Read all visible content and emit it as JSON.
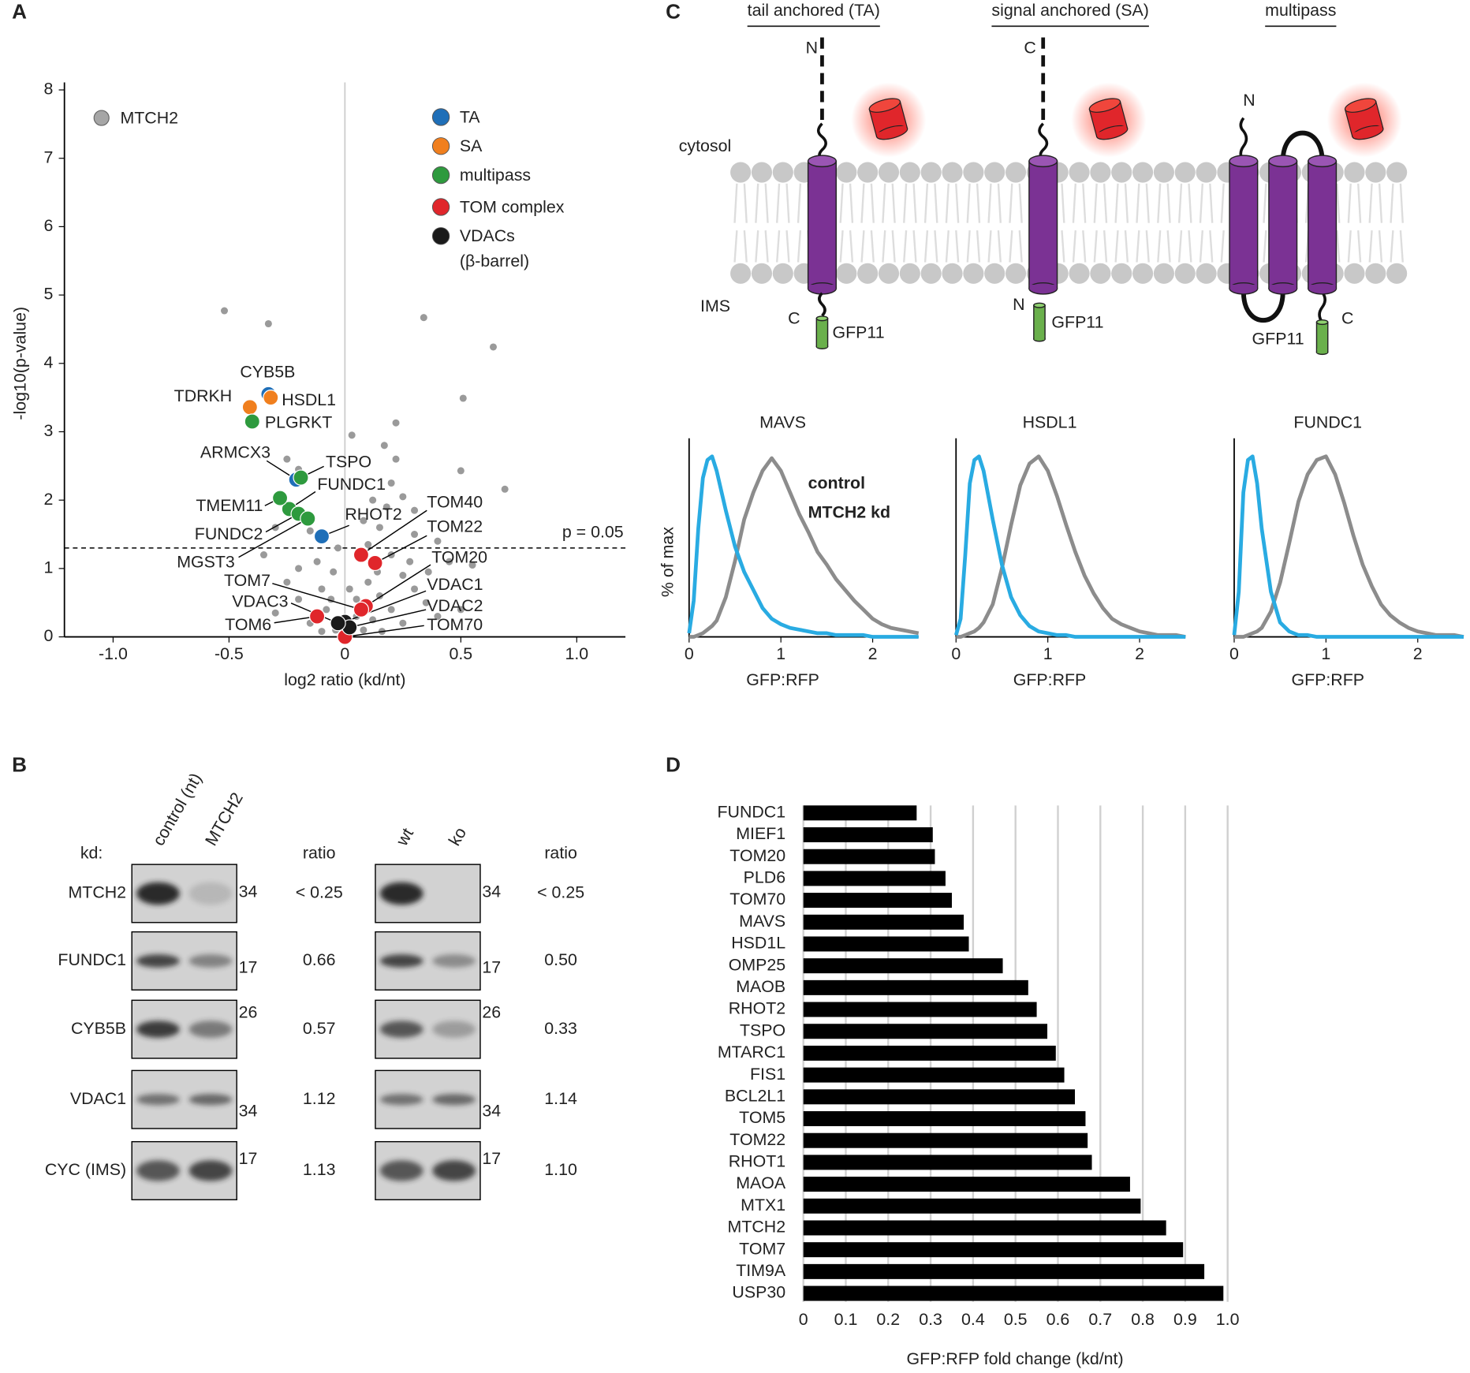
{
  "panel_labels": [
    "A",
    "B",
    "C",
    "D"
  ],
  "chart_data": [
    {
      "type": "scatter",
      "xlabel": "log2 ratio (kd/nt)",
      "ylabel": "-log10(p-value)",
      "xlim": [
        -1.21,
        1.21
      ],
      "ylim": [
        0,
        8
      ],
      "xticks": [
        {
          "value": -1,
          "label": "-1.0"
        },
        -0.5,
        0,
        0.5,
        {
          "value": 1,
          "label": "1.0"
        }
      ],
      "yticks": [
        0,
        1,
        2,
        3,
        4,
        5,
        6,
        7,
        8
      ],
      "vline": 0,
      "threshold": {
        "value": 1.3,
        "label": "p = 0.05"
      },
      "highlight": {
        "label": "MTCH2",
        "color": "#a6a6a6",
        "x": -1.05,
        "y": 7.59
      },
      "background": {
        "color": "#9a9a9a",
        "x": [
          -0.52,
          -0.33,
          0.34,
          0.64,
          0.51,
          0.22,
          0.5,
          0.69,
          -0.25,
          -0.2,
          0.22,
          0.2,
          0.25,
          0.3,
          0.18,
          0.15,
          -0.15,
          -0.3,
          0.3,
          0.4,
          0.45,
          0.55,
          0.2,
          0.25,
          -0.05,
          -0.12,
          -0.2,
          -0.35,
          0.1,
          0.15,
          -0.1,
          0.3,
          0.35,
          -0.2,
          0.05,
          0.2,
          -0.08,
          0.12,
          -0.15,
          0.25,
          0.05,
          -0.04,
          0.08,
          0.16,
          -0.1,
          0.4,
          0.5,
          -0.3,
          0.03,
          0.1,
          -0.03,
          0.08,
          0.12,
          0.17,
          0.14,
          0.02,
          -0.06,
          0.28,
          0.36,
          -0.25
        ],
        "y": [
          4.77,
          4.58,
          4.67,
          4.24,
          3.49,
          3.13,
          2.43,
          2.16,
          2.6,
          2.45,
          2.6,
          2.25,
          2.05,
          1.85,
          1.9,
          1.6,
          1.55,
          1.6,
          1.5,
          1.4,
          1.1,
          1.05,
          1.2,
          0.9,
          0.95,
          1.1,
          1.0,
          1.2,
          0.8,
          0.6,
          0.7,
          0.7,
          0.5,
          0.55,
          0.55,
          0.4,
          0.4,
          0.25,
          0.2,
          0.2,
          0.3,
          0.1,
          0.1,
          0.08,
          0.08,
          0.3,
          0.4,
          0.35,
          2.95,
          1.35,
          1.3,
          1.7,
          2.0,
          2.8,
          0.95,
          0.7,
          0.55,
          1.1,
          0.95,
          0.8
        ]
      },
      "series": [
        {
          "name": "TA",
          "color": "#1f6fb8",
          "points": [
            {
              "label": "CYB5B",
              "x": -0.33,
              "y": 3.55
            },
            {
              "label": "ARMCX3",
              "x": -0.21,
              "y": 2.3
            },
            {
              "label": "RHOT2",
              "x": -0.1,
              "y": 1.47
            }
          ]
        },
        {
          "name": "SA",
          "color": "#f07f1e",
          "points": [
            {
              "label": "TDRKH",
              "x": -0.41,
              "y": 3.36
            },
            {
              "label": "HSDL1",
              "x": -0.32,
              "y": 3.5
            }
          ]
        },
        {
          "name": "multipass",
          "color": "#2e9a3e",
          "points": [
            {
              "label": "PLGRKT",
              "x": -0.4,
              "y": 3.15
            },
            {
              "label": "TSPO",
              "x": -0.19,
              "y": 2.33
            },
            {
              "label": "FUNDC1",
              "x": -0.24,
              "y": 1.87
            },
            {
              "label": "TMEM11",
              "x": -0.28,
              "y": 2.03
            },
            {
              "label": "FUNDC2",
              "x": -0.2,
              "y": 1.8
            },
            {
              "label": "MGST3",
              "x": -0.16,
              "y": 1.73
            }
          ]
        },
        {
          "name": "TOM complex",
          "color": "#e0262b",
          "points": [
            {
              "label": "TOM40",
              "x": 0.07,
              "y": 1.2
            },
            {
              "label": "TOM22",
              "x": 0.13,
              "y": 1.08
            },
            {
              "label": "TOM20",
              "x": 0.09,
              "y": 0.45
            },
            {
              "label": "TOM7",
              "x": 0.07,
              "y": 0.4
            },
            {
              "label": "TOM6",
              "x": -0.12,
              "y": 0.3
            },
            {
              "label": "TOM70",
              "x": 0,
              "y": 0
            }
          ]
        },
        {
          "name": "VDACs",
          "subname": "(β-barrel)",
          "color": "#1a1a1a",
          "points": [
            {
              "label": "VDAC1",
              "x": 0,
              "y": 0.22
            },
            {
              "label": "VDAC2",
              "x": 0.02,
              "y": 0.14
            },
            {
              "label": "VDAC3",
              "x": -0.03,
              "y": 0.2
            }
          ]
        }
      ]
    },
    {
      "type": "line",
      "title": "MAVS",
      "xlabel": "GFP:RFP",
      "ylabel": "% of max",
      "xlim": [
        0,
        2.5
      ],
      "ylim": [
        0,
        110
      ],
      "xticks": [
        0,
        1,
        2
      ],
      "x": [
        0,
        0.05,
        0.1,
        0.15,
        0.2,
        0.25,
        0.3,
        0.4,
        0.5,
        0.6,
        0.7,
        0.8,
        0.9,
        1.0,
        1.1,
        1.2,
        1.3,
        1.4,
        1.5,
        1.6,
        1.7,
        1.8,
        1.9,
        2.0,
        2.1,
        2.2,
        2.3,
        2.4,
        2.5
      ],
      "series": [
        {
          "name": "control",
          "color": "#8c8c8c",
          "values": [
            0,
            0,
            1,
            2,
            4,
            6,
            9,
            22,
            42,
            65,
            80,
            92,
            99,
            92,
            80,
            68,
            58,
            47,
            40,
            32,
            26,
            20,
            15,
            10,
            7,
            5,
            4,
            3,
            2
          ]
        },
        {
          "name": "MTCH2 kd",
          "color": "#29abe2",
          "values": [
            2,
            20,
            60,
            88,
            98,
            100,
            92,
            70,
            50,
            36,
            26,
            16,
            10,
            7,
            5,
            4,
            3,
            2,
            2,
            1,
            1,
            1,
            1,
            0,
            0,
            0,
            0,
            0,
            0
          ]
        }
      ]
    },
    {
      "type": "line",
      "title": "HSDL1",
      "xlabel": "GFP:RFP",
      "xlim": [
        0,
        2.5
      ],
      "ylim": [
        0,
        110
      ],
      "xticks": [
        0,
        1,
        2
      ],
      "x": [
        0,
        0.05,
        0.1,
        0.15,
        0.2,
        0.25,
        0.3,
        0.4,
        0.5,
        0.6,
        0.7,
        0.8,
        0.9,
        1.0,
        1.1,
        1.2,
        1.3,
        1.4,
        1.5,
        1.6,
        1.7,
        1.8,
        1.9,
        2.0,
        2.1,
        2.2,
        2.3,
        2.4,
        2.5
      ],
      "series": [
        {
          "color": "#8c8c8c",
          "values": [
            0,
            0,
            1,
            2,
            3,
            5,
            8,
            18,
            38,
            62,
            84,
            96,
            100,
            92,
            78,
            62,
            47,
            34,
            24,
            16,
            10,
            7,
            5,
            3,
            2,
            1,
            1,
            1,
            0
          ]
        },
        {
          "color": "#29abe2",
          "values": [
            1,
            10,
            45,
            85,
            98,
            100,
            92,
            65,
            40,
            22,
            12,
            6,
            3,
            2,
            1,
            1,
            0,
            0,
            0,
            0,
            0,
            0,
            0,
            0,
            0,
            0,
            0,
            0,
            0
          ]
        }
      ]
    },
    {
      "type": "line",
      "title": "FUNDC1",
      "xlabel": "GFP:RFP",
      "xlim": [
        0,
        2.5
      ],
      "ylim": [
        0,
        110
      ],
      "xticks": [
        0,
        1,
        2
      ],
      "x": [
        0,
        0.05,
        0.1,
        0.15,
        0.2,
        0.25,
        0.3,
        0.4,
        0.5,
        0.6,
        0.7,
        0.8,
        0.9,
        1.0,
        1.1,
        1.2,
        1.3,
        1.4,
        1.5,
        1.6,
        1.7,
        1.8,
        1.9,
        2.0,
        2.1,
        2.2,
        2.3,
        2.4,
        2.5
      ],
      "series": [
        {
          "color": "#8c8c8c",
          "values": [
            0,
            0,
            0,
            1,
            2,
            3,
            5,
            14,
            30,
            52,
            75,
            90,
            98,
            100,
            90,
            74,
            56,
            40,
            28,
            18,
            12,
            8,
            5,
            3,
            2,
            1,
            1,
            1,
            0
          ]
        },
        {
          "color": "#29abe2",
          "values": [
            1,
            25,
            80,
            98,
            100,
            85,
            60,
            25,
            8,
            3,
            1,
            1,
            0,
            0,
            0,
            0,
            0,
            0,
            0,
            0,
            0,
            0,
            0,
            0,
            0,
            0,
            0,
            0,
            0
          ]
        }
      ]
    },
    {
      "type": "bar",
      "orientation": "horizontal",
      "xlabel": "GFP:RFP fold change (kd/nt)",
      "color": "#000000",
      "grid": true,
      "xlim": [
        0,
        1
      ],
      "xticks": [
        0,
        0.1,
        0.2,
        0.3,
        0.4,
        0.5,
        0.6,
        0.7,
        0.8,
        0.9,
        {
          "value": 1,
          "label": "1.0"
        }
      ],
      "categories": [
        "FUNDC1",
        "MIEF1",
        "TOM20",
        "PLD6",
        "TOM70",
        "MAVS",
        "HSD1L",
        "OMP25",
        "MAOB",
        "RHOT2",
        "TSPO",
        "MTARC1",
        "FIS1",
        "BCL2L1",
        "TOM5",
        "TOM22",
        "RHOT1",
        "MAOA",
        "MTX1",
        "MTCH2",
        "TOM7",
        "TIM9A",
        "USP30"
      ],
      "label_colors": [
        "#2e9a3e",
        "#f07f1e",
        "#f07f1e",
        "#f07f1e",
        "#f07f1e",
        "#1f6fb8",
        "#f07f1e",
        "#1f6fb8",
        "#1f6fb8",
        "#1f6fb8",
        "#2e9a3e",
        "#f07f1e",
        "#1f6fb8",
        "#1f6fb8",
        "#1f6fb8",
        "#1f6fb8",
        "#1f6fb8",
        "#1f6fb8",
        "#1f6fb8",
        "#2e9a3e",
        "#1f6fb8",
        "#9a9a9a",
        "#f07f1e"
      ],
      "values": [
        0.267,
        0.305,
        0.31,
        0.335,
        0.35,
        0.378,
        0.39,
        0.47,
        0.53,
        0.55,
        0.575,
        0.595,
        0.615,
        0.64,
        0.665,
        0.67,
        0.68,
        0.77,
        0.795,
        0.855,
        0.895,
        0.945,
        0.99
      ]
    }
  ],
  "blot": {
    "kd_label": "kd:",
    "lanes": [
      [
        "control (nt)",
        "MTCH2"
      ],
      [
        "wt",
        "ko"
      ]
    ],
    "ratio_header": "ratio",
    "rows": [
      {
        "name": "MTCH2",
        "color": "#111111",
        "ratios": [
          "< 0.25",
          "< 0.25"
        ],
        "mw": "34"
      },
      {
        "name": "FUNDC1",
        "color": "#2e9a3e",
        "ratios": [
          "0.66",
          "0.50"
        ],
        "mw": "17"
      },
      {
        "name": "CYB5B",
        "color": "#1f6fb8",
        "ratios": [
          "0.57",
          "0.33"
        ],
        "mw": "26"
      },
      {
        "name": "VDAC1",
        "color": "#111111",
        "ratios": [
          "1.12",
          "1.14"
        ],
        "mw": "34"
      },
      {
        "name": "CYC (IMS)",
        "color": "#9a9a9a",
        "ratios": [
          "1.13",
          "1.10"
        ],
        "mw": "17"
      }
    ]
  },
  "diagram": {
    "titles": [
      "tail anchored (TA)",
      "signal anchored (SA)",
      "multipass"
    ],
    "compartments": [
      "cytosol",
      "IMS"
    ],
    "termini": [
      [
        "N",
        "C"
      ],
      [
        "C",
        "N"
      ],
      [
        "N",
        "C"
      ]
    ],
    "tag": "GFP11"
  }
}
